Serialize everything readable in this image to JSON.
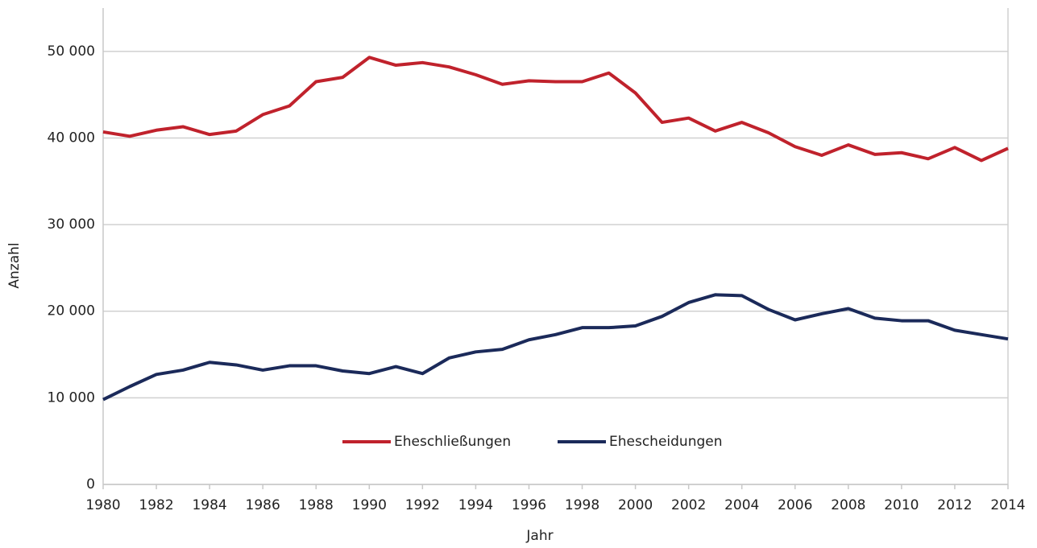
{
  "chart_data": {
    "type": "line",
    "x": [
      1980,
      1981,
      1982,
      1983,
      1984,
      1985,
      1986,
      1987,
      1988,
      1989,
      1990,
      1991,
      1992,
      1993,
      1994,
      1995,
      1996,
      1997,
      1998,
      1999,
      2000,
      2001,
      2002,
      2003,
      2004,
      2005,
      2006,
      2007,
      2008,
      2009,
      2010,
      2011,
      2012,
      2013,
      2014
    ],
    "series": [
      {
        "name": "Eheschließungen",
        "color": "#c0222c",
        "values": [
          40700,
          40200,
          40900,
          41300,
          40400,
          40800,
          42700,
          43700,
          46500,
          47000,
          49300,
          48400,
          48700,
          48200,
          47300,
          46200,
          46600,
          46500,
          46500,
          47500,
          45200,
          41800,
          42300,
          40800,
          41800,
          40600,
          39000,
          38000,
          39200,
          38100,
          38300,
          37600,
          38900,
          37400,
          38800
        ]
      },
      {
        "name": "Ehescheidungen",
        "color": "#1b2a5a",
        "values": [
          9800,
          11300,
          12700,
          13200,
          14100,
          13800,
          13200,
          13700,
          13700,
          13100,
          12800,
          13600,
          12800,
          14600,
          15300,
          15600,
          16700,
          17300,
          18100,
          18100,
          18300,
          19400,
          21000,
          21900,
          21800,
          20200,
          19000,
          19700,
          20300,
          19200,
          18900,
          18900,
          17800,
          17300,
          16800
        ]
      }
    ],
    "xlabel": "Jahr",
    "ylabel": "Anzahl",
    "xlim": [
      1980,
      2014
    ],
    "xticks": [
      1980,
      1982,
      1984,
      1986,
      1988,
      1990,
      1992,
      1994,
      1996,
      1998,
      2000,
      2002,
      2004,
      2006,
      2008,
      2010,
      2012,
      2014
    ],
    "ylim": [
      0,
      55000
    ],
    "yticks": [
      0,
      {
        "value": 10000,
        "label": "10 000"
      },
      {
        "value": 20000,
        "label": "20 000"
      },
      {
        "value": 30000,
        "label": "30 000"
      },
      {
        "value": 40000,
        "label": "40 000"
      },
      {
        "value": 50000,
        "label": "50 000"
      }
    ],
    "grid": true,
    "legend": "bottom"
  }
}
